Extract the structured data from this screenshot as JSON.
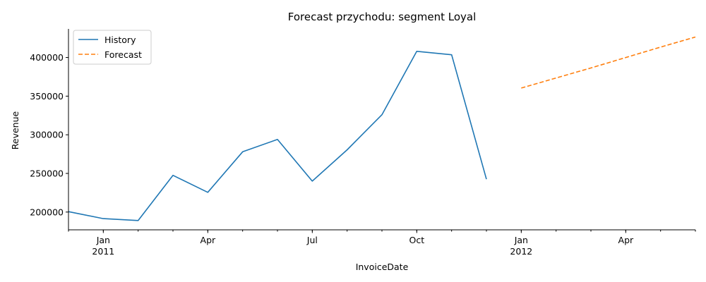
{
  "chart_data": {
    "type": "line",
    "title": "Forecast przychodu: segment Loyal",
    "xlabel": "InvoiceDate",
    "ylabel": "Revenue",
    "xlim": [
      "2010-12",
      "2012-06"
    ],
    "ylim": [
      177000,
      437000
    ],
    "grid": false,
    "legend_position": "top-left",
    "x_ticks_major": [
      {
        "date": "2011-01",
        "label": "Jan",
        "sublabel": "2011"
      },
      {
        "date": "2011-04",
        "label": "Apr",
        "sublabel": ""
      },
      {
        "date": "2011-07",
        "label": "Jul",
        "sublabel": ""
      },
      {
        "date": "2011-10",
        "label": "Oct",
        "sublabel": ""
      },
      {
        "date": "2012-01",
        "label": "Jan",
        "sublabel": "2012"
      },
      {
        "date": "2012-04",
        "label": "Apr",
        "sublabel": ""
      }
    ],
    "y_ticks": [
      200000,
      250000,
      300000,
      350000,
      400000
    ],
    "series": [
      {
        "name": "History",
        "color": "#1f77b4",
        "style": "solid",
        "x": [
          "2010-12",
          "2011-01",
          "2011-02",
          "2011-03",
          "2011-04",
          "2011-05",
          "2011-06",
          "2011-07",
          "2011-08",
          "2011-09",
          "2011-10",
          "2011-11",
          "2011-12"
        ],
        "values": [
          200500,
          191500,
          189000,
          247500,
          225500,
          278000,
          294000,
          240000,
          280500,
          326000,
          408000,
          403500,
          242500
        ]
      },
      {
        "name": "Forecast",
        "color": "#ff7f0e",
        "style": "dashed",
        "x": [
          "2012-01",
          "2012-02",
          "2012-03",
          "2012-04",
          "2012-05",
          "2012-06"
        ],
        "values": [
          360500,
          373500,
          386500,
          400000,
          413500,
          426500
        ]
      }
    ]
  }
}
